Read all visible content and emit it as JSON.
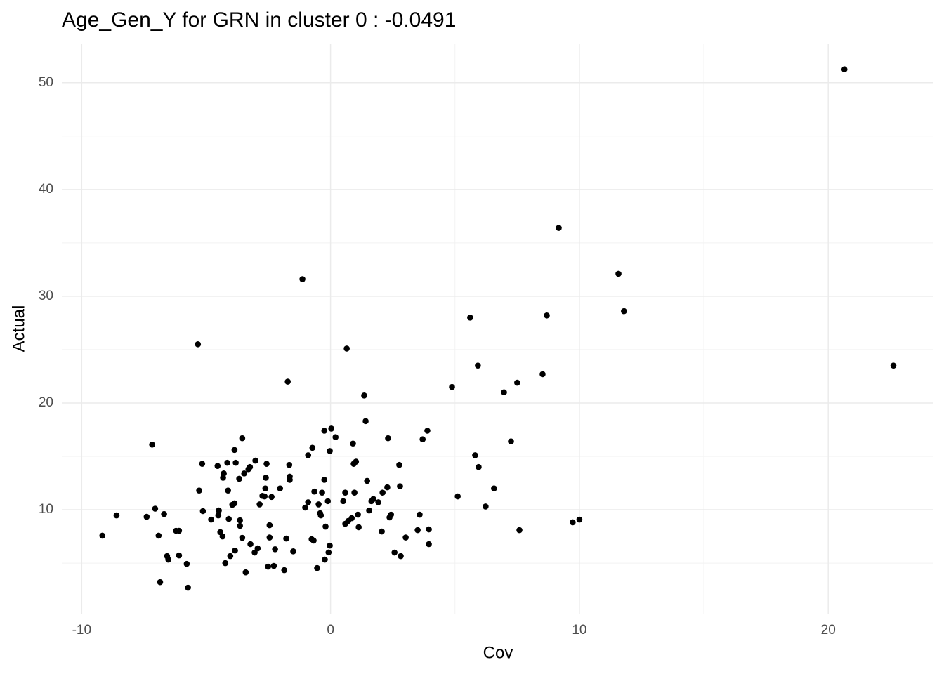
{
  "chart_data": {
    "type": "scatter",
    "title": "Age_Gen_Y for GRN in cluster 0 : -0.0491",
    "x_label": "Cov",
    "y_label": "Actual",
    "color": "#000000",
    "grid": true,
    "xlim": [
      -10.8,
      24.2
    ],
    "ylim": [
      0.27,
      53.6
    ],
    "xticks": [
      -10,
      0,
      10,
      20
    ],
    "yticks": [
      10,
      20,
      30,
      40,
      50
    ],
    "xminor": [
      -5,
      5,
      15
    ],
    "yminor": [
      5,
      15,
      25,
      35,
      45
    ],
    "x": [
      -9.17,
      -8.6,
      -7.17,
      -7.39,
      -7.05,
      -6.69,
      -6.91,
      -6.85,
      -6.57,
      -6.52,
      -6.21,
      -6.09,
      -6.09,
      -5.78,
      -5.73,
      -5.33,
      -5.28,
      -5.16,
      -5.13,
      -4.8,
      -4.54,
      -4.51,
      -4.49,
      -4.43,
      -4.34,
      -4.29,
      -4.32,
      -4.23,
      -4.15,
      -4.12,
      -4.09,
      -4.03,
      -3.95,
      -3.86,
      -3.81,
      -3.86,
      -3.84,
      -3.67,
      -3.64,
      -3.64,
      -3.55,
      -3.55,
      -3.47,
      -3.41,
      -3.3,
      -3.24,
      -3.22,
      -3.05,
      -3.02,
      -2.93,
      -2.85,
      -2.74,
      -2.65,
      -2.62,
      -2.6,
      -2.57,
      -2.51,
      -2.45,
      -2.45,
      -2.37,
      -2.28,
      -2.23,
      -2.03,
      -1.86,
      -1.78,
      -1.72,
      -1.66,
      -1.64,
      -1.64,
      -1.5,
      -1.13,
      -1.02,
      -0.9,
      -0.9,
      -0.73,
      -0.76,
      -0.68,
      -0.65,
      -0.54,
      -0.48,
      -0.42,
      -0.39,
      -0.34,
      -0.25,
      -0.25,
      -0.23,
      -0.2,
      -0.11,
      -0.08,
      -0.03,
      -0.03,
      0.03,
      0.2,
      0.51,
      0.59,
      0.59,
      0.65,
      0.71,
      0.85,
      0.9,
      0.93,
      0.96,
      1.02,
      1.1,
      1.13,
      1.35,
      1.41,
      1.47,
      1.55,
      1.64,
      1.72,
      1.92,
      2.06,
      2.09,
      2.28,
      2.31,
      2.37,
      2.43,
      2.57,
      2.76,
      2.79,
      2.82,
      3.02,
      3.5,
      3.58,
      3.7,
      3.89,
      3.95,
      3.95,
      4.88,
      5.11,
      5.61,
      5.81,
      5.92,
      5.95,
      6.23,
      6.57,
      6.97,
      7.25,
      7.5,
      7.59,
      8.52,
      8.69,
      9.17,
      9.73,
      10.0,
      11.57,
      11.79,
      20.65,
      22.62
    ],
    "values": [
      7.57,
      9.47,
      16.1,
      9.34,
      10.1,
      9.6,
      7.57,
      3.22,
      5.66,
      5.33,
      8.03,
      8.03,
      5.72,
      4.93,
      2.7,
      25.5,
      11.8,
      14.3,
      9.87,
      9.08,
      14.1,
      9.47,
      9.93,
      7.9,
      7.5,
      13.4,
      13.0,
      5.0,
      14.4,
      11.8,
      9.14,
      5.66,
      10.46,
      15.6,
      14.4,
      10.6,
      6.18,
      12.9,
      8.49,
      9.01,
      16.7,
      7.37,
      13.4,
      4.14,
      13.8,
      14.0,
      6.78,
      5.99,
      14.6,
      6.38,
      10.5,
      11.3,
      11.25,
      12.0,
      13.0,
      14.3,
      4.67,
      8.55,
      7.4,
      11.2,
      4.74,
      6.3,
      12.0,
      4.34,
      7.3,
      22.0,
      14.2,
      13.1,
      12.8,
      6.1,
      31.6,
      10.2,
      10.7,
      15.1,
      15.8,
      7.24,
      7.11,
      11.7,
      4.54,
      10.5,
      9.67,
      9.47,
      11.6,
      12.8,
      17.4,
      5.33,
      8.42,
      10.8,
      6.0,
      6.64,
      15.5,
      17.6,
      16.8,
      10.8,
      11.6,
      8.68,
      25.1,
      8.95,
      9.21,
      16.2,
      14.3,
      11.6,
      14.5,
      9.54,
      8.36,
      20.7,
      18.3,
      12.7,
      9.93,
      10.8,
      11.0,
      10.7,
      7.96,
      11.6,
      12.1,
      16.7,
      9.28,
      9.54,
      5.99,
      14.2,
      12.2,
      5.66,
      7.4,
      8.09,
      9.54,
      16.6,
      17.4,
      8.16,
      6.78,
      21.5,
      11.25,
      28.0,
      15.1,
      23.5,
      14.0,
      10.3,
      12.0,
      21.0,
      16.4,
      21.9,
      8.09,
      22.7,
      28.2,
      36.4,
      8.82,
      9.08,
      32.1,
      28.6,
      51.25,
      23.5
    ]
  }
}
